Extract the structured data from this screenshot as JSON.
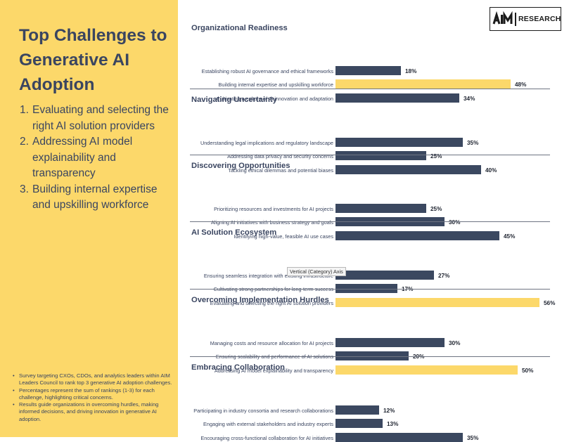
{
  "title": "Top Challenges to Generative AI Adoption",
  "top_challenges": [
    {
      "num": "1.",
      "text": "Evaluating and selecting the right AI solution providers"
    },
    {
      "num": "2.",
      "text": "Addressing AI model explainability and transparency"
    },
    {
      "num": "3.",
      "text": "Building internal expertise and upskilling workforce"
    }
  ],
  "notes": [
    "Survey targeting CXOs, CDOs, and analytics leaders within AIM Leaders Council to rank top 3 generative AI adoption challenges.",
    "Percentages represent the sum of rankings (1-3) for each challenge, highlighting critical concerns.",
    "Results guide organizations in overcoming hurdles, making informed decisions, and driving innovation in generative AI adoption."
  ],
  "brand": {
    "logo_icon": "aim-logo-icon",
    "text": "RESEARCH"
  },
  "tooltip": "Vertical (Category) Axis",
  "colors": {
    "panel": "#fcd86a",
    "bar": "#3b4860",
    "highlight": "#fcd86a",
    "title_text": "#3a4560"
  },
  "chart_data": {
    "type": "bar",
    "orientation": "horizontal",
    "value_suffix": "%",
    "xlim": [
      0,
      56
    ],
    "groups": [
      {
        "title": "Organizational Readiness",
        "items": [
          {
            "label": "Establishing robust AI governance and ethical frameworks",
            "value": 18,
            "highlight": false
          },
          {
            "label": "Building internal expertise and upskilling workforce",
            "value": 48,
            "highlight": true
          },
          {
            "label": "Cultivating a culture of AI innovation and adaptation",
            "value": 34,
            "highlight": false
          }
        ]
      },
      {
        "title": "Navigating Uncertainty",
        "items": [
          {
            "label": "Understanding legal implications and regulatory landscape",
            "value": 35,
            "highlight": false
          },
          {
            "label": "Addressing data privacy and security concerns",
            "value": 25,
            "highlight": false
          },
          {
            "label": "Tackling ethical dilemmas and potential biases",
            "value": 40,
            "highlight": false
          }
        ]
      },
      {
        "title": "Discovering Opportunities",
        "items": [
          {
            "label": "Prioritizing resources and investments for AI projects",
            "value": 25,
            "highlight": false
          },
          {
            "label": "Aligning AI initiatives with business strategy and goals",
            "value": 30,
            "highlight": false
          },
          {
            "label": "Identifying high-value, feasible AI use cases",
            "value": 45,
            "highlight": false
          }
        ]
      },
      {
        "title": "AI Solution Ecosystem",
        "items": [
          {
            "label": "Ensuring seamless integration with existing infrastructure",
            "value": 27,
            "highlight": false
          },
          {
            "label": "Cultivating strong partnerships for long-term success",
            "value": 17,
            "highlight": false
          },
          {
            "label": "Evaluating and selecting the right AI solution providers",
            "value": 56,
            "highlight": true
          }
        ]
      },
      {
        "title": "Overcoming Implementation Hurdles",
        "items": [
          {
            "label": "Managing costs and resource allocation for AI projects",
            "value": 30,
            "highlight": false
          },
          {
            "label": "Ensuring scalability and performance of AI solutions",
            "value": 20,
            "highlight": false
          },
          {
            "label": "Addressing AI model explainability and transparency",
            "value": 50,
            "highlight": true
          }
        ]
      },
      {
        "title": "Embracing Collaboration",
        "items": [
          {
            "label": "Participating in industry consortia and research collaborations",
            "value": 12,
            "highlight": false
          },
          {
            "label": "Engaging with external stakeholders and industry experts",
            "value": 13,
            "highlight": false
          },
          {
            "label": "Encouraging cross-functional collaboration for AI initiatives",
            "value": 35,
            "highlight": false
          }
        ]
      }
    ]
  }
}
